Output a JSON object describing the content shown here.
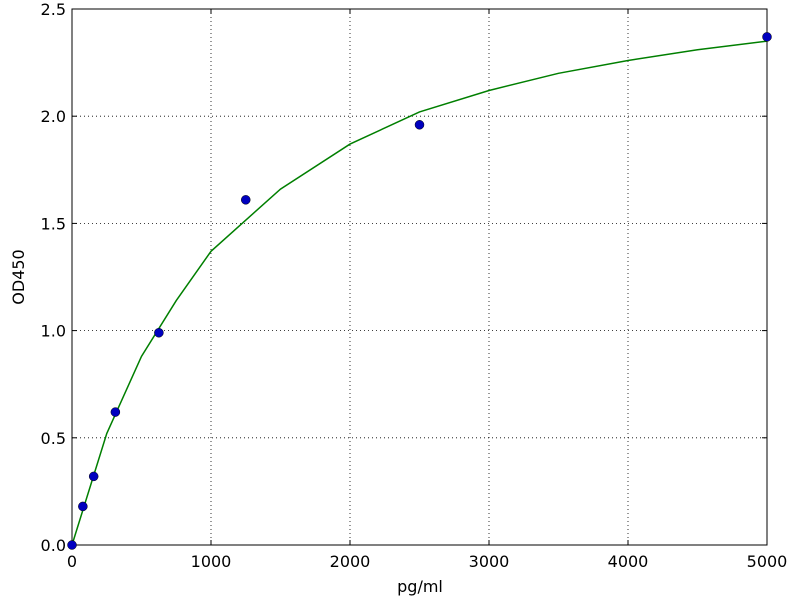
{
  "chart_data": {
    "type": "scatter",
    "x_label": "pg/ml",
    "y_label": "OD450",
    "series": [
      {
        "type": "scatter",
        "color": "#0000bf",
        "x": [
          0,
          78,
          156,
          312,
          625,
          1250,
          2500,
          5000
        ],
        "values": [
          0.0,
          0.18,
          0.32,
          0.62,
          0.99,
          1.61,
          1.96,
          2.37
        ]
      },
      {
        "type": "line",
        "color": "#007f00",
        "x": [
          0,
          250,
          500,
          750,
          1000,
          1500,
          2000,
          2500,
          3000,
          3500,
          4000,
          4500,
          5000
        ],
        "values": [
          0.0,
          0.52,
          0.88,
          1.14,
          1.37,
          1.66,
          1.87,
          2.02,
          2.12,
          2.2,
          2.26,
          2.31,
          2.35
        ]
      }
    ],
    "xlim": [
      0,
      5000
    ],
    "xticks": [
      0,
      1000,
      2000,
      3000,
      4000,
      5000
    ],
    "ylim": [
      0,
      2.5
    ],
    "yticks": [
      {
        "value": 0,
        "label": "0.0"
      },
      0.5,
      {
        "value": 1,
        "label": "1.0"
      },
      1.5,
      {
        "value": 2,
        "label": "2.0"
      },
      2.5
    ],
    "grid": true
  }
}
